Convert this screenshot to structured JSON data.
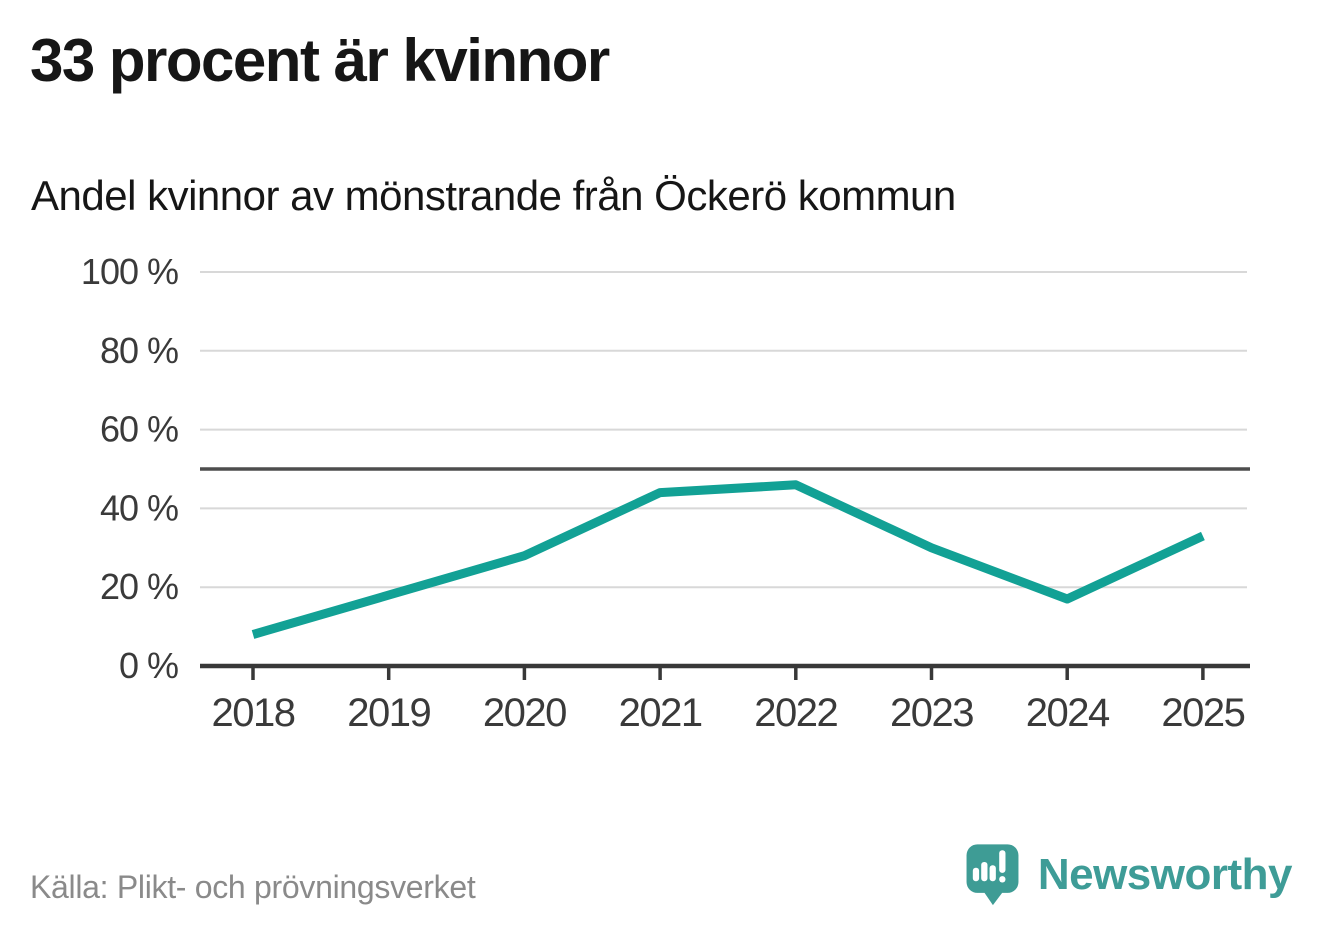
{
  "header": {
    "title": "33 procent är kvinnor",
    "subtitle": "Andel kvinnor av mönstrande från Öckerö kommun"
  },
  "footer": {
    "source": "Källa: Plikt- och prövningsverket",
    "brand": "Newsworthy"
  },
  "colors": {
    "line": "#12a195",
    "grid": "#d8d8d8",
    "reference_line": "#4d4d4d",
    "axis": "#383838",
    "tick_text": "#3a3a3a",
    "title_text": "#161616",
    "source_text": "#8a8a8a",
    "brand": "#3e9c97",
    "logo_bubble": "#3e9c95",
    "background": "#ffffff"
  },
  "chart_data": {
    "type": "line",
    "title": "33 procent är kvinnor",
    "subtitle": "Andel kvinnor av mönstrande från Öckerö kommun",
    "x": [
      "2018",
      "2019",
      "2020",
      "2021",
      "2022",
      "2023",
      "2024",
      "2025"
    ],
    "series": [
      {
        "name": "Andel kvinnor av mönstrande",
        "values": [
          8,
          18,
          28,
          44,
          46,
          30,
          17,
          33
        ]
      }
    ],
    "xlabel": "",
    "ylabel": "",
    "ylim": [
      0,
      100
    ],
    "yticks": [
      0,
      20,
      40,
      60,
      80,
      100
    ],
    "y_tick_format": "{v} %",
    "reference_line": 50,
    "grid": true,
    "legend": false,
    "line_width": 9
  }
}
